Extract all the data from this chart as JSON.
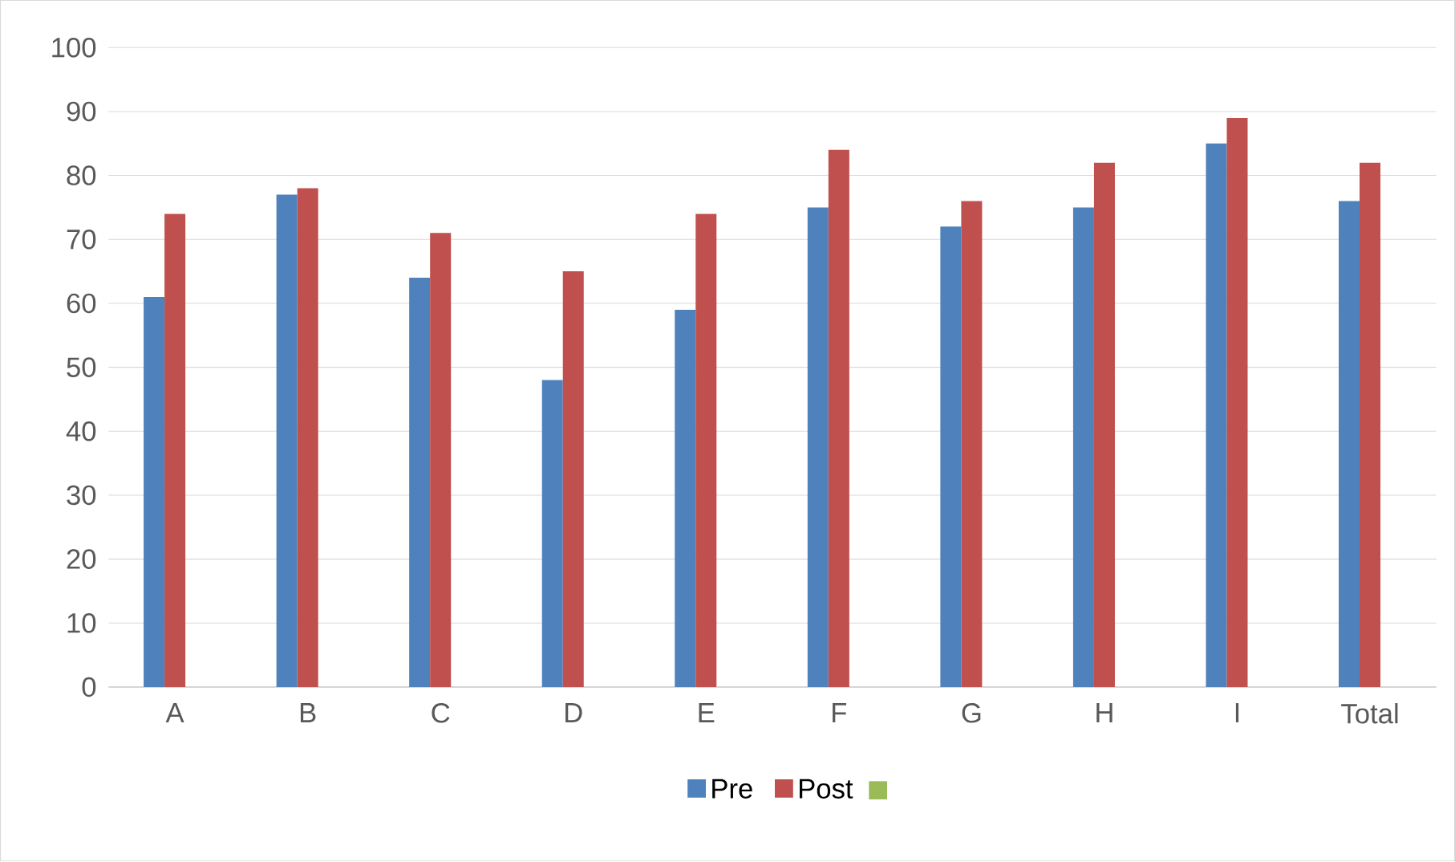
{
  "chart_data": {
    "type": "bar",
    "categories": [
      "A",
      "B",
      "C",
      "D",
      "E",
      "F",
      "G",
      "H",
      "I",
      "Total"
    ],
    "series": [
      {
        "name": "Pre",
        "color": "#4f81bd",
        "values": [
          61,
          77,
          64,
          48,
          59,
          75,
          72,
          75,
          85,
          76
        ]
      },
      {
        "name": "Post",
        "color": "#c0504d",
        "values": [
          74,
          78,
          71,
          65,
          74,
          84,
          76,
          82,
          89,
          82
        ]
      }
    ],
    "ylim": [
      0,
      100
    ],
    "yticks": [
      0,
      10,
      20,
      30,
      40,
      50,
      60,
      70,
      80,
      90,
      100
    ],
    "grid": "y",
    "legend": "bottom"
  }
}
